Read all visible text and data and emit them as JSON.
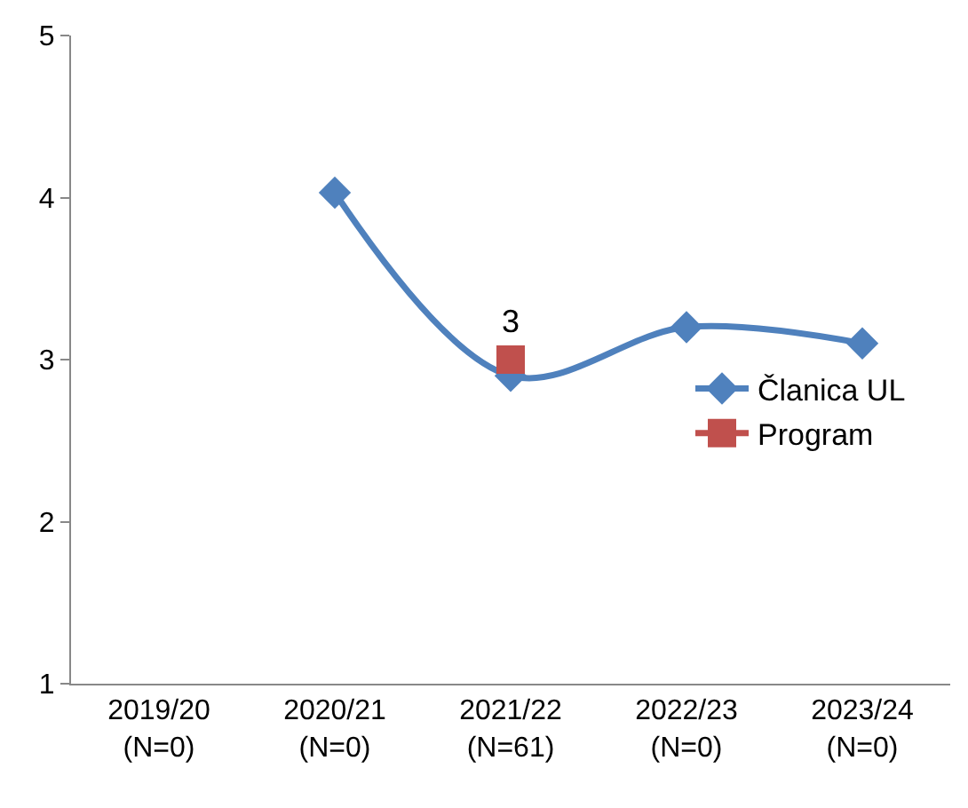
{
  "chart_data": {
    "type": "line",
    "categories": [
      "2019/20\n(N=0)",
      "2020/21\n(N=0)",
      "2021/22\n(N=61)",
      "2022/23\n(N=0)",
      "2023/24\n(N=0)"
    ],
    "series": [
      {
        "name": "Članica UL",
        "color": "#4f81bd",
        "values": [
          null,
          4.03,
          2.9,
          3.2,
          3.1
        ],
        "marker": "diamond"
      },
      {
        "name": "Program",
        "color": "#c0504d",
        "values": [
          null,
          null,
          3,
          null,
          null
        ],
        "marker": "square",
        "value_labels": [
          null,
          null,
          "3",
          null,
          null
        ]
      }
    ],
    "ylim": [
      1,
      5
    ],
    "yticks": [
      1,
      2,
      3,
      4,
      5
    ],
    "legend": "right"
  }
}
